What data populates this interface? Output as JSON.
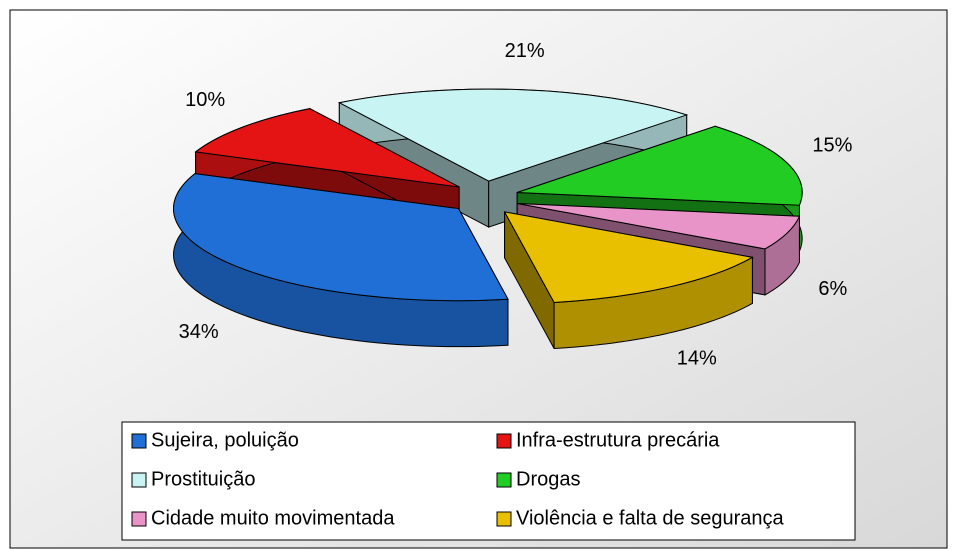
{
  "chart_data": {
    "type": "pie",
    "categories": [
      "Sujeira, poluição",
      "Infra-estrutura precária",
      "Prostituição",
      "Drogas",
      "Cidade muito movimentada",
      "Violência e falta de segurança"
    ],
    "values": [
      34,
      10,
      21,
      15,
      6,
      14
    ],
    "value_labels": [
      "34%",
      "10%",
      "21%",
      "15%",
      "6%",
      "14%"
    ],
    "colors": [
      "#1f6fd6",
      "#e41414",
      "#c8f4f4",
      "#22cc22",
      "#e894c8",
      "#e8c000"
    ],
    "legend": "bottom"
  }
}
